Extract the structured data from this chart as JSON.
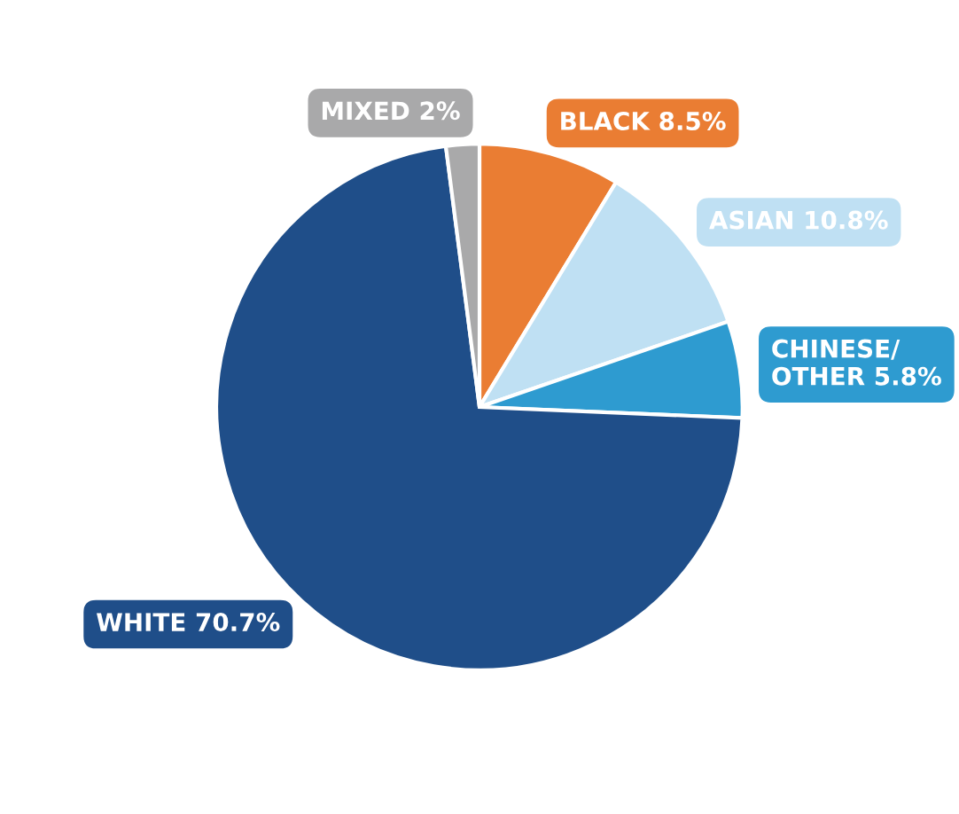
{
  "chart_data": {
    "type": "pie",
    "categories": [
      "BLACK",
      "ASIAN",
      "CHINESE/ OTHER",
      "WHITE",
      "MIXED"
    ],
    "values": [
      8.5,
      10.8,
      5.8,
      70.7,
      2
    ],
    "value_labels": [
      "8.5%",
      "10.8%",
      "5.8%",
      "70.7%",
      "2%"
    ],
    "colors": [
      "#ea7d33",
      "#bfe0f3",
      "#2e9bd0",
      "#1f4e89",
      "#a9a9aa"
    ]
  }
}
